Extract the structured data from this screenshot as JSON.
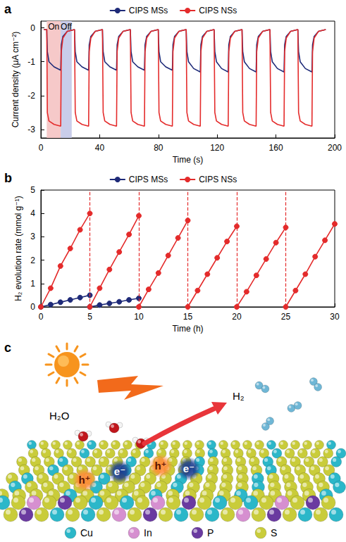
{
  "chart_data": [
    {
      "panel_label": "a",
      "type": "line",
      "x_label": "Time (s)",
      "y_label": "Current density (μA cm⁻²)",
      "x": [
        2,
        4,
        4.4,
        5.5,
        9,
        13.5,
        13.9,
        15,
        18,
        22.9,
        23,
        23.4,
        24.5,
        28,
        32.5,
        32.9,
        34,
        37,
        41.9,
        42,
        42.4,
        43.5,
        47,
        51.5,
        51.9,
        53,
        56,
        60.9,
        61,
        61.4,
        62.5,
        66,
        70.5,
        70.9,
        72,
        75,
        79.9,
        80,
        80.4,
        81.5,
        85,
        89.5,
        89.9,
        91,
        94,
        98.9,
        99,
        99.4,
        100.5,
        104,
        108.5,
        108.9,
        110,
        113,
        117.9,
        118,
        118.4,
        119.5,
        123,
        127.5,
        127.9,
        129,
        132,
        136.9,
        137,
        137.4,
        138.5,
        142,
        146.5,
        146.9,
        148,
        151,
        155.9,
        156,
        156.4,
        157.5,
        161,
        165.5,
        165.9,
        167,
        170,
        174.9,
        175,
        175.4,
        176.5,
        180,
        184.5,
        184.9,
        186,
        189,
        193.9
      ],
      "series": [
        {
          "name": "CIPS MSs",
          "color": "#1e2a78",
          "values": [
            -0.05,
            -0.05,
            -0.7,
            -1.0,
            -1.15,
            -1.25,
            -0.5,
            -0.25,
            -0.1,
            -0.05,
            -0.05,
            -0.7,
            -1.0,
            -1.15,
            -1.25,
            -0.5,
            -0.25,
            -0.1,
            -0.05,
            -0.05,
            -0.7,
            -1.0,
            -1.15,
            -1.25,
            -0.5,
            -0.25,
            -0.1,
            -0.05,
            -0.05,
            -0.7,
            -1.0,
            -1.15,
            -1.25,
            -0.5,
            -0.25,
            -0.1,
            -0.05,
            -0.05,
            -0.7,
            -1.0,
            -1.15,
            -1.25,
            -0.5,
            -0.25,
            -0.1,
            -0.05,
            -0.05,
            -0.7,
            -1.0,
            -1.2,
            -1.3,
            -0.5,
            -0.25,
            -0.1,
            -0.05,
            -0.05,
            -0.7,
            -1.0,
            -1.2,
            -1.3,
            -0.5,
            -0.25,
            -0.1,
            -0.05,
            -0.05,
            -0.7,
            -1.0,
            -1.2,
            -1.3,
            -0.5,
            -0.25,
            -0.1,
            -0.05,
            -0.05,
            -0.7,
            -1.0,
            -1.2,
            -1.3,
            -0.5,
            -0.25,
            -0.1,
            -0.05,
            -0.05,
            -0.7,
            -1.0,
            -1.2,
            -1.3,
            -0.5,
            -0.25,
            -0.1,
            -0.05
          ]
        },
        {
          "name": "CIPS NSs",
          "color": "#e42b2b",
          "values": [
            -0.05,
            -0.05,
            -2.5,
            -2.75,
            -2.85,
            -2.9,
            -0.7,
            -0.3,
            -0.1,
            -0.05,
            -0.05,
            -2.5,
            -2.75,
            -2.85,
            -2.9,
            -0.7,
            -0.3,
            -0.1,
            -0.05,
            -0.05,
            -2.5,
            -2.75,
            -2.85,
            -2.9,
            -0.7,
            -0.3,
            -0.1,
            -0.05,
            -0.05,
            -2.5,
            -2.75,
            -2.85,
            -2.9,
            -0.7,
            -0.3,
            -0.1,
            -0.05,
            -0.05,
            -2.5,
            -2.75,
            -2.85,
            -2.9,
            -0.7,
            -0.3,
            -0.1,
            -0.05,
            -0.05,
            -2.5,
            -2.75,
            -2.85,
            -2.9,
            -0.7,
            -0.3,
            -0.1,
            -0.05,
            -0.05,
            -2.5,
            -2.75,
            -2.85,
            -2.9,
            -0.7,
            -0.3,
            -0.1,
            -0.05,
            -0.05,
            -2.5,
            -2.75,
            -2.85,
            -2.9,
            -0.7,
            -0.3,
            -0.1,
            -0.05,
            -0.05,
            -2.5,
            -2.75,
            -2.85,
            -2.9,
            -0.7,
            -0.3,
            -0.1,
            -0.05,
            -0.05,
            -2.5,
            -2.75,
            -2.85,
            -2.9,
            -0.7,
            -0.3,
            -0.1,
            -0.05
          ]
        }
      ],
      "xlim": [
        0,
        200
      ],
      "xticks": [
        0,
        40,
        80,
        120,
        160,
        200
      ],
      "ylim": [
        -3.25,
        0.2
      ],
      "yticks": [
        -3,
        -2,
        -1,
        0
      ],
      "legend": "top",
      "shaded_regions": [
        {
          "label": "On",
          "x": [
            4,
            13.5
          ],
          "color": "#f6c9c9"
        },
        {
          "label": "Off",
          "x": [
            13.5,
            21
          ],
          "color": "#c9cdea"
        }
      ]
    },
    {
      "panel_label": "b",
      "type": "line",
      "marker": "circle",
      "x_label": "Time (h)",
      "y_label": "H₂ evolution rate (mmol g⁻¹)",
      "x": [
        0,
        1,
        2,
        3,
        4,
        5,
        5,
        5,
        6,
        7,
        8,
        9,
        10,
        10,
        10,
        11,
        12,
        13,
        14,
        15,
        15,
        15,
        16,
        17,
        18,
        19,
        20,
        20,
        20,
        21,
        22,
        23,
        24,
        25,
        25,
        25,
        26,
        27,
        28,
        29,
        30
      ],
      "series": [
        {
          "name": "CIPS MSs",
          "color": "#1e2a78",
          "values": [
            0,
            0.1,
            0.2,
            0.3,
            0.4,
            0.5,
            null,
            0,
            0.08,
            0.15,
            0.22,
            0.3,
            0.37,
            null,
            null,
            null,
            null,
            null,
            null,
            null,
            null,
            null,
            null,
            null,
            null,
            null,
            null,
            null,
            null,
            null,
            null,
            null,
            null,
            null,
            null,
            null,
            null,
            null,
            null,
            null,
            null
          ]
        },
        {
          "name": "CIPS NSs",
          "color": "#e42b2b",
          "values": [
            0,
            0.8,
            1.75,
            2.5,
            3.3,
            4.0,
            null,
            0,
            0.8,
            1.6,
            2.35,
            3.1,
            3.9,
            null,
            0,
            0.75,
            1.45,
            2.2,
            2.95,
            3.7,
            null,
            0,
            0.7,
            1.4,
            2.1,
            2.8,
            3.45,
            null,
            0,
            0.65,
            1.35,
            2.05,
            2.75,
            3.4,
            null,
            0,
            0.7,
            1.4,
            2.15,
            2.85,
            3.55
          ]
        }
      ],
      "xlim": [
        0,
        30
      ],
      "xticks": [
        0,
        5,
        10,
        15,
        20,
        25,
        30
      ],
      "ylim": [
        0,
        5
      ],
      "yticks": [
        0,
        1,
        2,
        3,
        4,
        5
      ],
      "legend": "top",
      "vertical_lines": {
        "x": [
          5,
          10,
          15,
          20,
          25
        ],
        "color": "#e42b2b",
        "line_style": "dashed"
      }
    }
  ],
  "diagram": {
    "panel_label": "c",
    "water_label": "H₂O",
    "hydrogen_label": "H₂",
    "electron_label": "e⁻",
    "hole_label": "h⁺",
    "elements": [
      {
        "label": "Cu",
        "color": "#2bb7c9"
      },
      {
        "label": "In",
        "color": "#d68fd0"
      },
      {
        "label": "P",
        "color": "#6a3aa0"
      },
      {
        "label": "S",
        "color": "#c9cc3a"
      }
    ]
  }
}
